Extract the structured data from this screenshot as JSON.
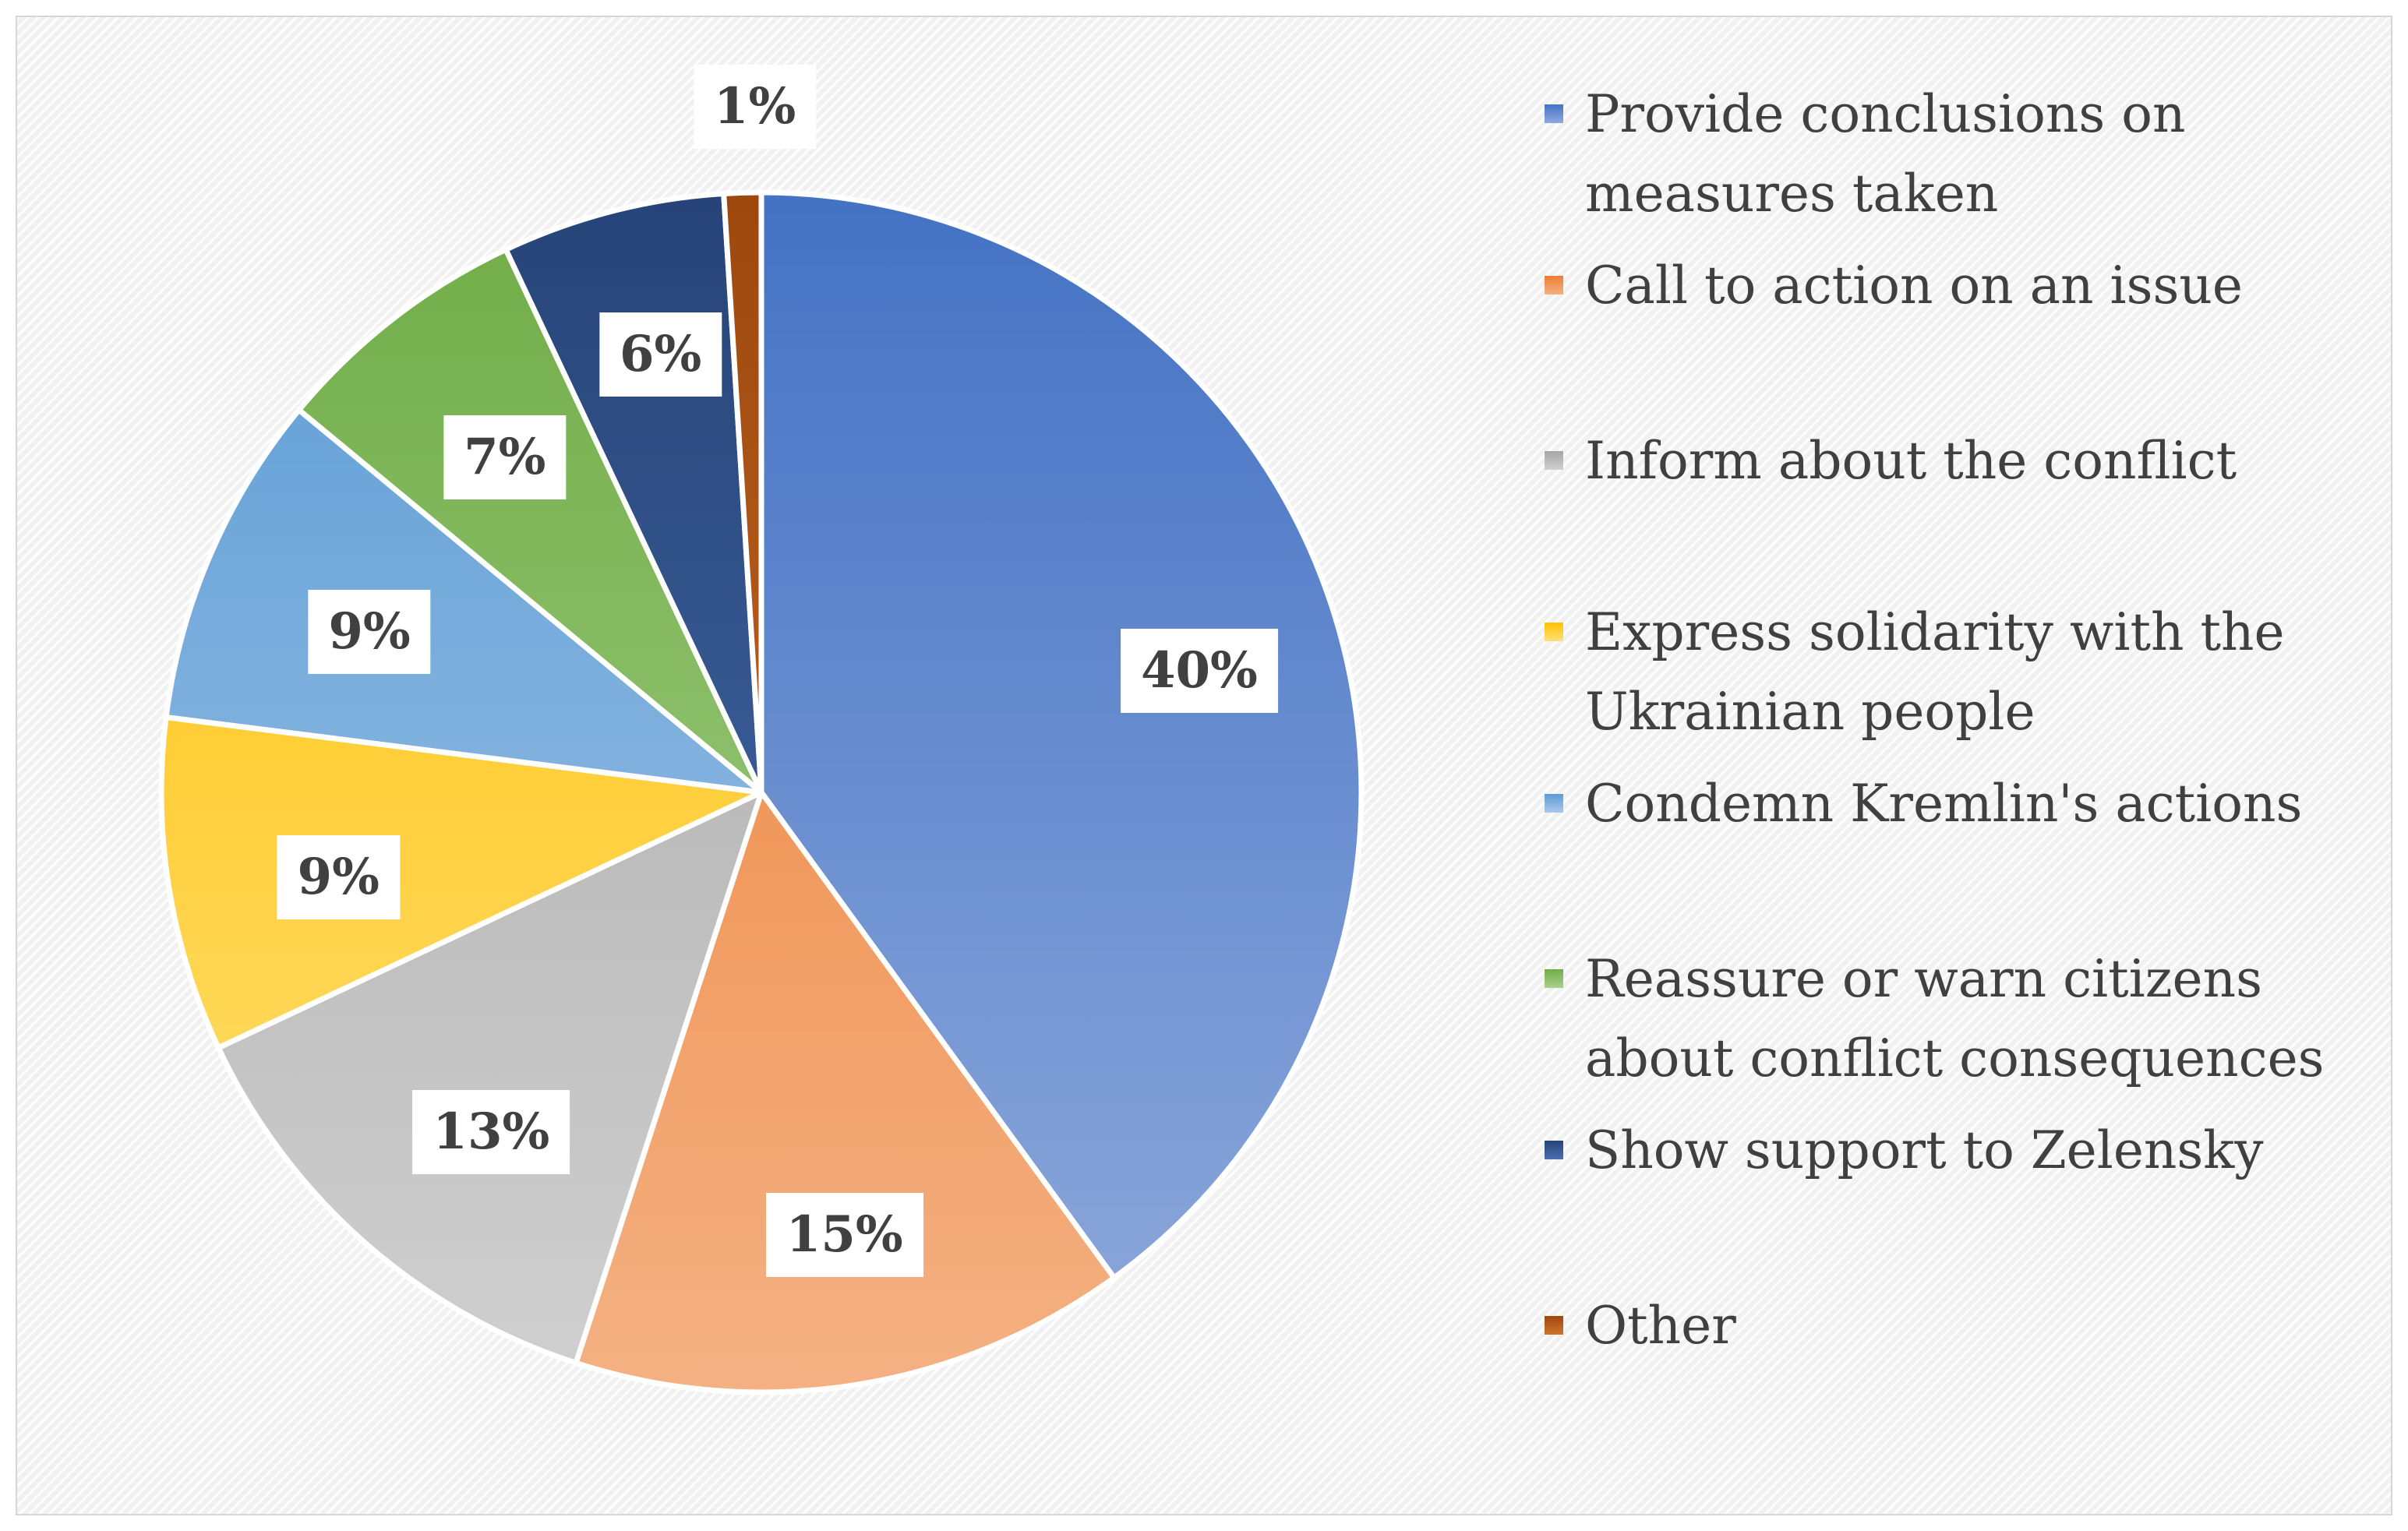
{
  "chart_data": {
    "type": "pie",
    "title": "",
    "legend_position": "right",
    "slices": [
      {
        "label": "Provide conclusions on measures taken",
        "value": 40,
        "display": "40%",
        "color": "#4472c4",
        "color_light": "#8faadc"
      },
      {
        "label": "Call to action on an issue",
        "value": 15,
        "display": "15%",
        "color": "#ed7d31",
        "color_light": "#f4b183"
      },
      {
        "label": "Inform about the conflict",
        "value": 13,
        "display": "13%",
        "color": "#a5a5a5",
        "color_light": "#d0d0d0"
      },
      {
        "label": "Express solidarity with the Ukrainian people",
        "value": 9,
        "display": "9%",
        "color": "#ffc000",
        "color_light": "#ffe07a"
      },
      {
        "label": "Condemn Kremlin's actions",
        "value": 9,
        "display": "9%",
        "color": "#5b9bd5",
        "color_light": "#a9c9e8"
      },
      {
        "label": "Reassure or warn citizens about conflict consequences",
        "value": 7,
        "display": "7%",
        "color": "#70ad47",
        "color_light": "#a9d18e"
      },
      {
        "label": "Show support to Zelensky",
        "value": 6,
        "display": "6%",
        "color": "#264478",
        "color_light": "#4a6fb0"
      },
      {
        "label": "Other",
        "value": 1,
        "display": "1%",
        "color": "#9e480e",
        "color_light": "#d0742e"
      }
    ]
  }
}
